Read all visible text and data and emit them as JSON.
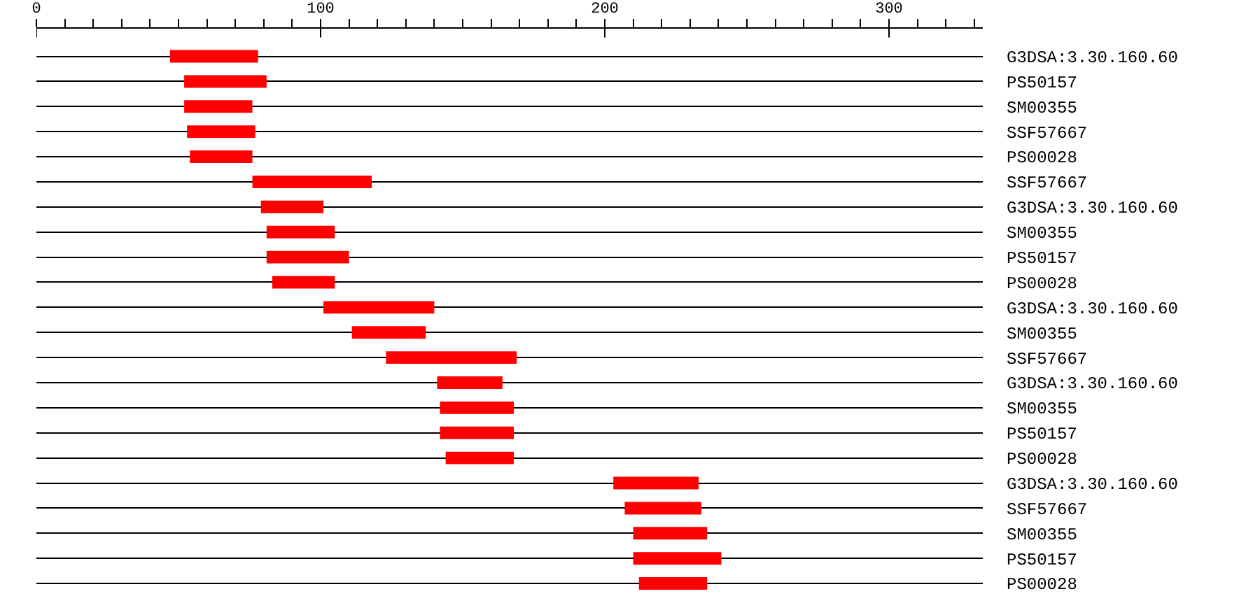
{
  "chart_data": {
    "type": "bar",
    "orientation": "horizontal",
    "categories": [
      "G3DSA:3.30.160.60",
      "PS50157",
      "SM00355",
      "SSF57667",
      "PS00028",
      "SSF57667",
      "G3DSA:3.30.160.60",
      "SM00355",
      "PS50157",
      "PS00028",
      "G3DSA:3.30.160.60",
      "SM00355",
      "SSF57667",
      "G3DSA:3.30.160.60",
      "SM00355",
      "PS50157",
      "PS00028",
      "G3DSA:3.30.160.60",
      "SSF57667",
      "SM00355",
      "PS50157",
      "PS00028"
    ],
    "base": [
      47,
      52,
      52,
      53,
      54,
      76,
      79,
      81,
      81,
      83,
      101,
      111,
      123,
      141,
      142,
      142,
      144,
      203,
      207,
      210,
      210,
      212
    ],
    "values": [
      31,
      29,
      24,
      24,
      22,
      42,
      22,
      24,
      29,
      22,
      39,
      26,
      46,
      23,
      26,
      26,
      24,
      30,
      27,
      26,
      31,
      24
    ],
    "color": "#ff0000",
    "xlim": [
      0,
      333
    ],
    "xticks": [
      0,
      {
        "value": 10,
        "label": null
      },
      {
        "value": 20,
        "label": null
      },
      {
        "value": 30,
        "label": null
      },
      {
        "value": 40,
        "label": null
      },
      {
        "value": 50,
        "label": null
      },
      {
        "value": 60,
        "label": null
      },
      {
        "value": 70,
        "label": null
      },
      {
        "value": 80,
        "label": null
      },
      {
        "value": 90,
        "label": null
      },
      100,
      {
        "value": 110,
        "label": null
      },
      {
        "value": 120,
        "label": null
      },
      {
        "value": 130,
        "label": null
      },
      {
        "value": 140,
        "label": null
      },
      {
        "value": 150,
        "label": null
      },
      {
        "value": 160,
        "label": null
      },
      {
        "value": 170,
        "label": null
      },
      {
        "value": 180,
        "label": null
      },
      {
        "value": 190,
        "label": null
      },
      200,
      {
        "value": 210,
        "label": null
      },
      {
        "value": 220,
        "label": null
      },
      {
        "value": 230,
        "label": null
      },
      {
        "value": 240,
        "label": null
      },
      {
        "value": 250,
        "label": null
      },
      {
        "value": 260,
        "label": null
      },
      {
        "value": 270,
        "label": null
      },
      {
        "value": 280,
        "label": null
      },
      {
        "value": 290,
        "label": null
      },
      300,
      {
        "value": 310,
        "label": null
      },
      {
        "value": 320,
        "label": null
      },
      {
        "value": 330,
        "label": null
      }
    ],
    "grid": "y"
  }
}
